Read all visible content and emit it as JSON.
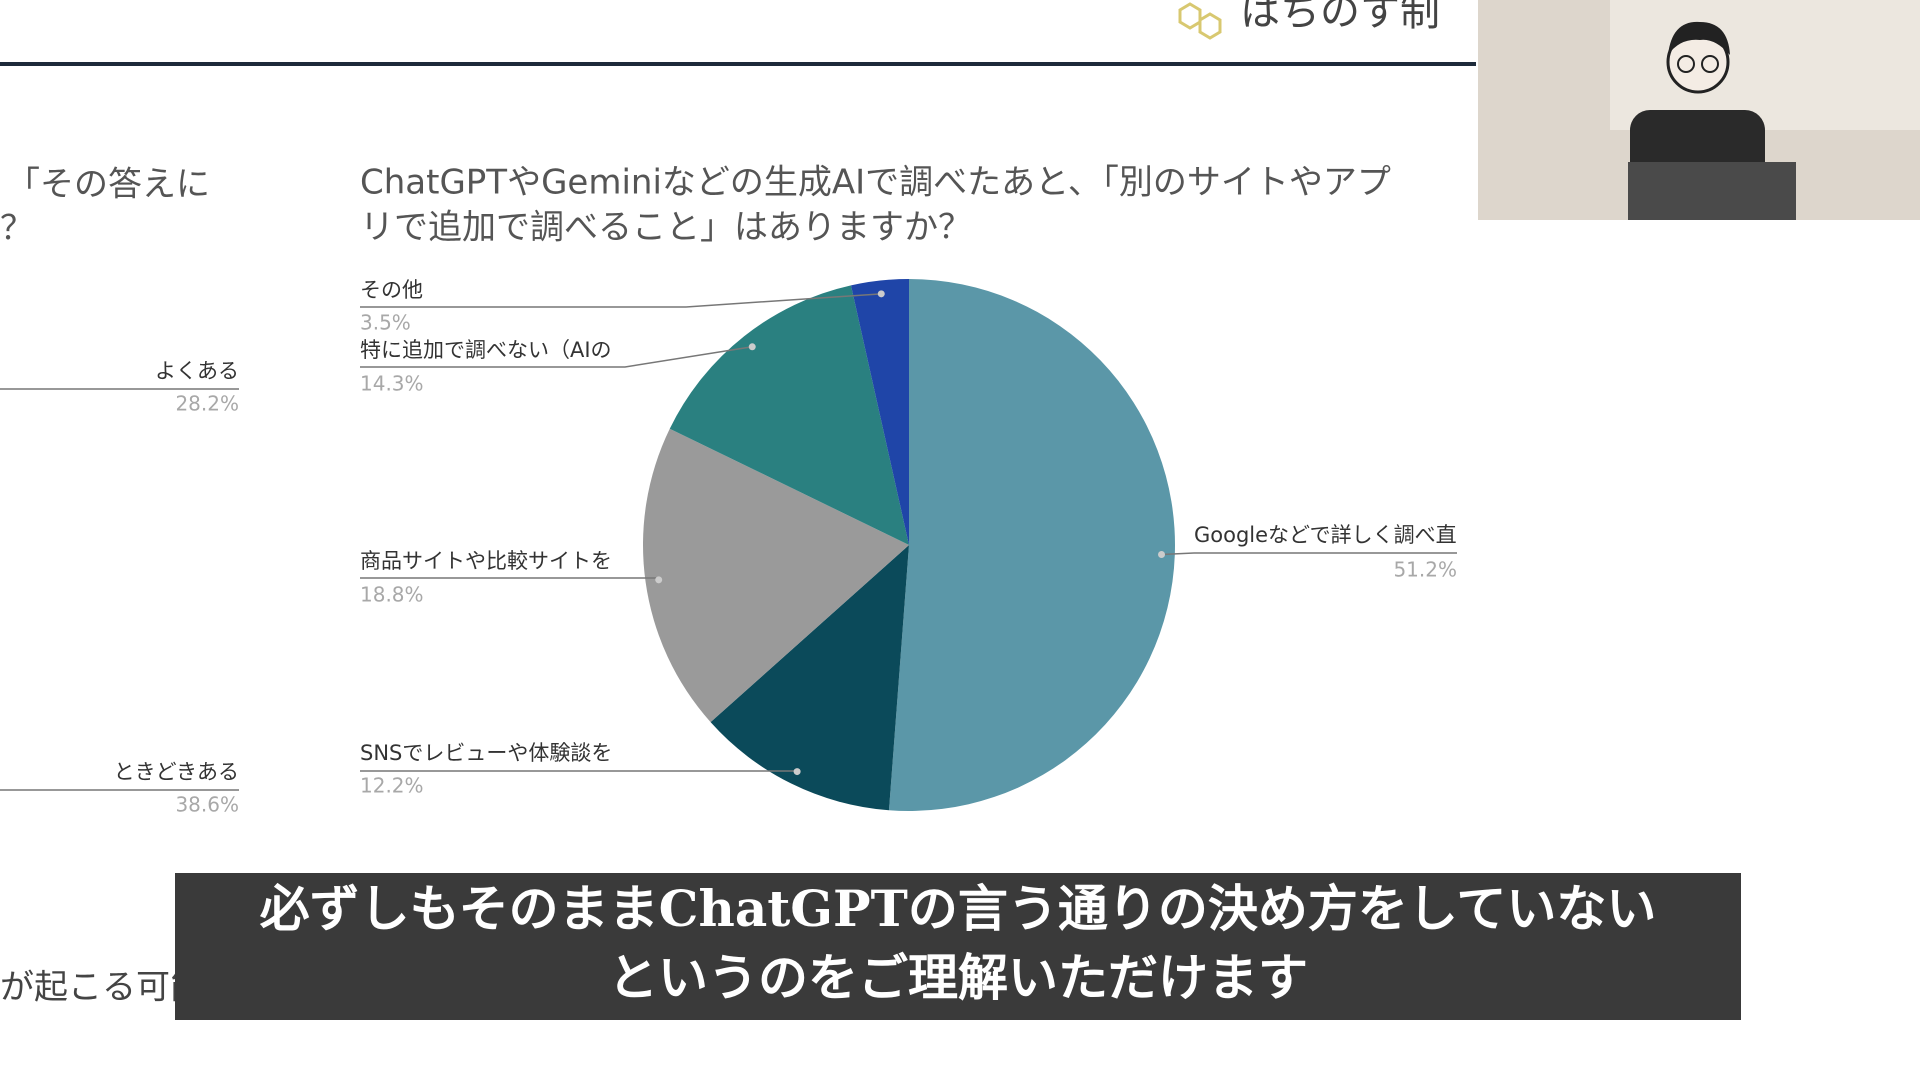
{
  "header": {
    "logo_text": "はちのす制"
  },
  "chart_data": [
    {
      "type": "pie",
      "title_lines": [
        "ChatGPTやGeminiなどの生成AIで調べたあと、「別のサイトやアプ",
        "リで追加で調べること」はありますか？"
      ],
      "categories": [
        "Googleなどで詳しく調べ直",
        "SNSでレビューや体験談を",
        "商品サイトや比較サイトを",
        "特に追加で調べない（AIの",
        "その他"
      ],
      "values": [
        51.2,
        12.2,
        18.8,
        14.3,
        3.5
      ],
      "value_labels": [
        "51.2%",
        "12.2%",
        "18.8%",
        "14.3%",
        "3.5%"
      ],
      "colors": [
        "#5b97a8",
        "#0b4a5a",
        "#9a9a9a",
        "#2a8080",
        "#1f45a8"
      ]
    },
    {
      "type": "pie",
      "title_lines": [
        "「その答えに",
        "？"
      ],
      "categories": [
        "よくある",
        "ときどきある"
      ],
      "values": [
        28.2,
        38.6
      ],
      "value_labels": [
        "28.2%",
        "38.6%"
      ]
    }
  ],
  "background_text": [
    "が起こる可能"
  ],
  "subtitles": [
    "必ずしもそのままChatGPTの言う通りの決め方をしていない",
    "というのをご理解いただけます"
  ]
}
